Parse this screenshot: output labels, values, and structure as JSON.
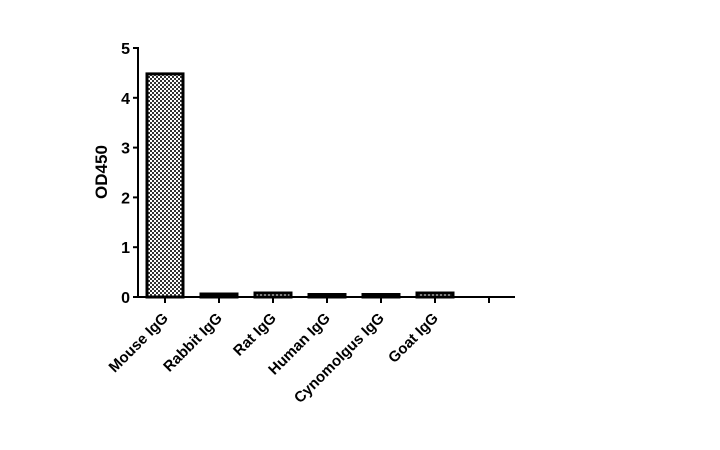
{
  "chart_data": {
    "type": "bar",
    "title": "",
    "xlabel": "",
    "ylabel": "OD450",
    "ylim": [
      0,
      5
    ],
    "yticks": [
      0,
      1,
      2,
      3,
      4,
      5
    ],
    "grid": false,
    "categories": [
      "Mouse IgG",
      "Rabbit IgG",
      "Rat IgG",
      "Human IgG",
      "Cynomolgus IgG",
      "Goat IgG",
      ""
    ],
    "values": [
      4.48,
      0.06,
      0.08,
      0.05,
      0.05,
      0.08,
      null
    ],
    "colors": {
      "bar_fill_pattern": "checkerboard",
      "bar_stroke": "#000000"
    }
  }
}
